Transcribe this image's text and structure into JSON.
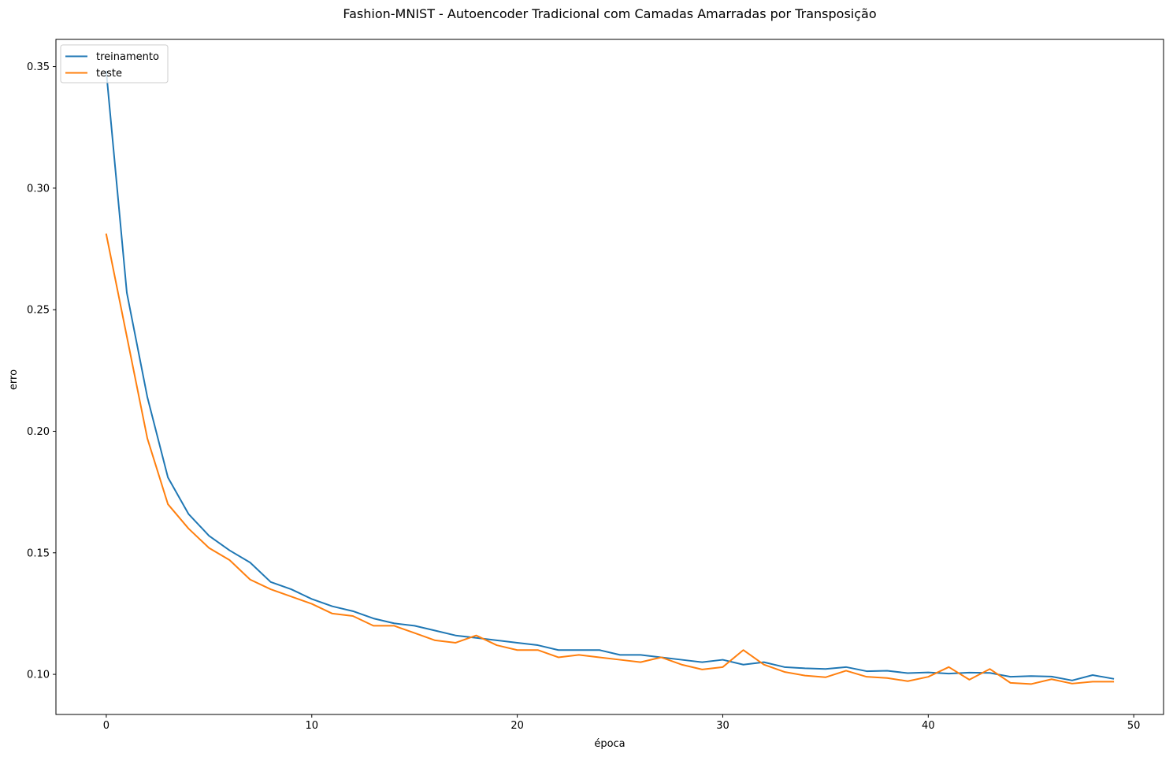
{
  "chart_data": {
    "type": "line",
    "title": "Fashion-MNIST - Autoencoder Tradicional com Camadas Amarradas por Transposição",
    "xlabel": "época",
    "ylabel": "erro",
    "xlim": [
      -2.45,
      51.45
    ],
    "ylim": [
      0.0835,
      0.3612
    ],
    "xticks": [
      0,
      10,
      20,
      30,
      40,
      50
    ],
    "yticks": [
      0.1,
      0.15,
      0.2,
      0.25,
      0.3,
      0.35
    ],
    "xtick_labels": [
      "0",
      "10",
      "20",
      "30",
      "40",
      "50"
    ],
    "ytick_labels": [
      "0.10",
      "0.15",
      "0.20",
      "0.25",
      "0.30",
      "0.35"
    ],
    "grid": false,
    "legend_position": "upper left",
    "x": [
      0,
      1,
      2,
      3,
      4,
      5,
      6,
      7,
      8,
      9,
      10,
      11,
      12,
      13,
      14,
      15,
      16,
      17,
      18,
      19,
      20,
      21,
      22,
      23,
      24,
      25,
      26,
      27,
      28,
      29,
      30,
      31,
      32,
      33,
      34,
      35,
      36,
      37,
      38,
      39,
      40,
      41,
      42,
      43,
      44,
      45,
      46,
      47,
      48,
      49
    ],
    "series": [
      {
        "name": "treinamento",
        "color": "#1f77b4",
        "values": [
          0.348,
          0.257,
          0.214,
          0.181,
          0.166,
          0.157,
          0.151,
          0.146,
          0.138,
          0.135,
          0.131,
          0.128,
          0.126,
          0.123,
          0.121,
          0.12,
          0.118,
          0.116,
          0.115,
          0.114,
          0.113,
          0.112,
          0.11,
          0.11,
          0.11,
          0.108,
          0.108,
          0.107,
          0.106,
          0.105,
          0.106,
          0.104,
          0.105,
          0.103,
          0.1025,
          0.1022,
          0.103,
          0.1013,
          0.1015,
          0.1005,
          0.1008,
          0.1003,
          0.1007,
          0.1006,
          0.099,
          0.0993,
          0.0991,
          0.0975,
          0.0997,
          0.0982
        ]
      },
      {
        "name": "teste",
        "color": "#ff7f0e",
        "values": [
          0.281,
          0.239,
          0.197,
          0.17,
          0.16,
          0.152,
          0.147,
          0.139,
          0.135,
          0.132,
          0.129,
          0.125,
          0.124,
          0.12,
          0.12,
          0.117,
          0.114,
          0.113,
          0.116,
          0.112,
          0.11,
          0.11,
          0.107,
          0.108,
          0.107,
          0.106,
          0.105,
          0.107,
          0.104,
          0.102,
          0.103,
          0.11,
          0.104,
          0.101,
          0.0995,
          0.0988,
          0.1015,
          0.099,
          0.0985,
          0.0972,
          0.099,
          0.103,
          0.0978,
          0.1022,
          0.0965,
          0.096,
          0.098,
          0.0962,
          0.097,
          0.097
        ]
      }
    ]
  }
}
